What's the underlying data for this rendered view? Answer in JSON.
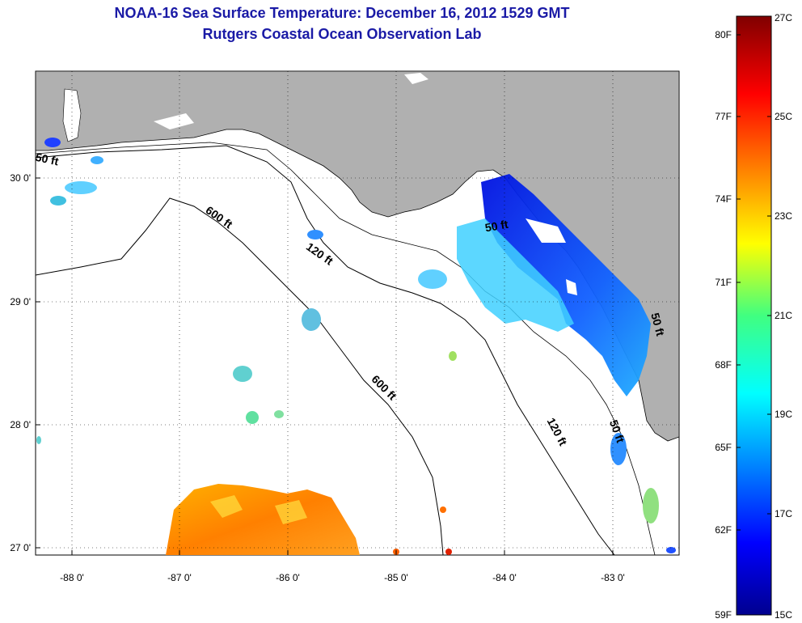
{
  "title": "NOAA-16 Sea Surface Temperature:  December 16, 2012 1529 GMT",
  "subtitle": "Rutgers Coastal Ocean Observation Lab",
  "map": {
    "lon_ticks": [
      "-88 0'",
      "-87 0'",
      "-86 0'",
      "-85 0'",
      "-84 0'",
      "-83 0'"
    ],
    "lat_ticks": [
      "30 0'",
      "29 0'",
      "28 0'",
      "27 0'"
    ],
    "contour_labels": [
      "50 ft",
      "600 ft",
      "120 ft",
      "50 ft",
      "600 ft",
      "120 ft",
      "50 ft",
      "50 ft"
    ],
    "land_color": "#b0b0b0",
    "water_color": "#ffffff"
  },
  "colorbar": {
    "fahrenheit_labels": [
      "80F",
      "77F",
      "74F",
      "71F",
      "68F",
      "65F",
      "62F",
      "59F"
    ],
    "celsius_labels": [
      "27C",
      "25C",
      "23C",
      "21C",
      "19C",
      "17C",
      "15C"
    ],
    "range_celsius": [
      15,
      27
    ],
    "colormap": "jet"
  }
}
